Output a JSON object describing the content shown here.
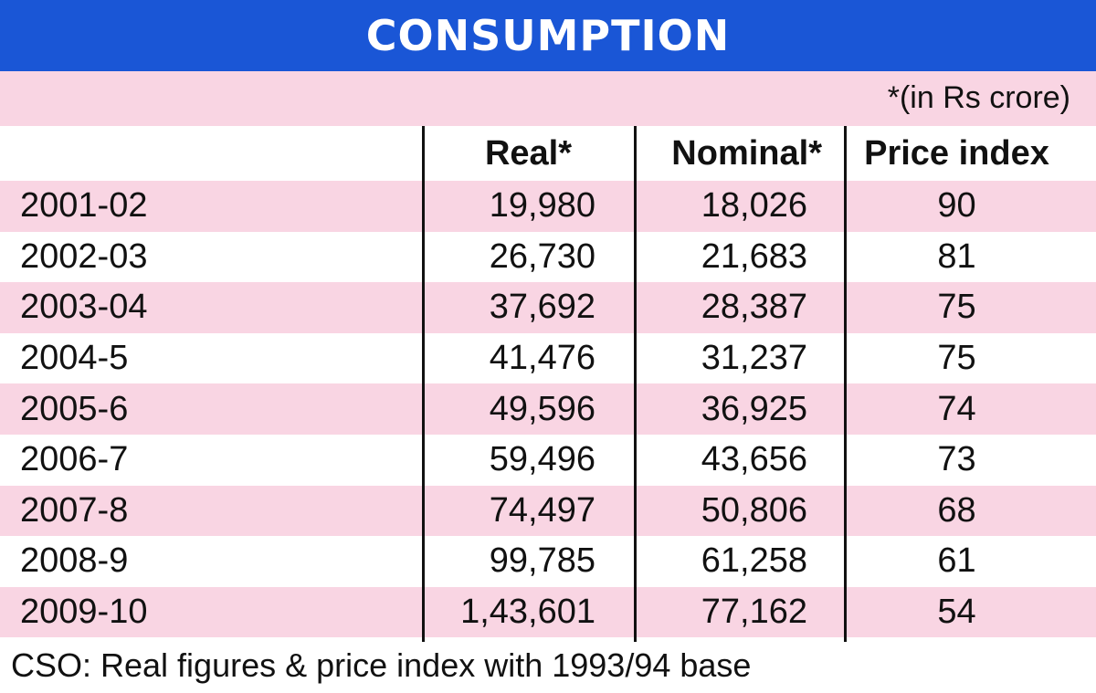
{
  "chart_data": {
    "type": "table",
    "title": "CONSUMPTION",
    "unit_note": "*(in Rs crore)",
    "columns": [
      "",
      "Real*",
      "Nominal*",
      "Price index"
    ],
    "rows": [
      {
        "year": "2001-02",
        "real": "19,980",
        "nominal": "18,026",
        "price_index": "90"
      },
      {
        "year": "2002-03",
        "real": "26,730",
        "nominal": "21,683",
        "price_index": "81"
      },
      {
        "year": "2003-04",
        "real": "37,692",
        "nominal": "28,387",
        "price_index": "75"
      },
      {
        "year": "2004-5",
        "real": "41,476",
        "nominal": "31,237",
        "price_index": "75"
      },
      {
        "year": "2005-6",
        "real": "49,596",
        "nominal": "36,925",
        "price_index": "74"
      },
      {
        "year": "2006-7",
        "real": "59,496",
        "nominal": "43,656",
        "price_index": "73"
      },
      {
        "year": "2007-8",
        "real": "74,497",
        "nominal": "50,806",
        "price_index": "68"
      },
      {
        "year": "2008-9",
        "real": "99,785",
        "nominal": "61,258",
        "price_index": "61"
      },
      {
        "year": "2009-10",
        "real": "1,43,601",
        "nominal": "77,162",
        "price_index": "54"
      }
    ],
    "footnote": "CSO: Real figures & price index with 1993/94 base"
  },
  "colors": {
    "title_bar": "#1a56d6",
    "stripe": "#f9d5e3"
  }
}
